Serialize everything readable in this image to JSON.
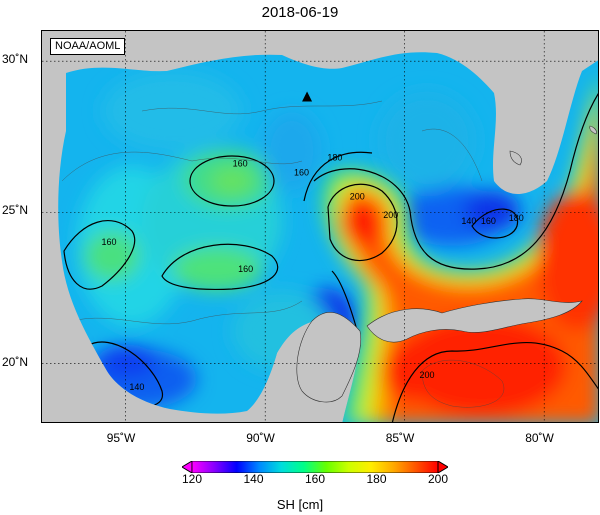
{
  "title": "2018-06-19",
  "credit": "NOAA/AOML",
  "map": {
    "lon_range": [
      -98,
      -78
    ],
    "lat_range": [
      18,
      31
    ],
    "lon_ticks": [
      {
        "value": -95,
        "label": "95˚W"
      },
      {
        "value": -90,
        "label": "90˚W"
      },
      {
        "value": -85,
        "label": "85˚W"
      },
      {
        "value": -80,
        "label": "80˚W"
      }
    ],
    "lat_ticks": [
      {
        "value": 30,
        "label": "30˚N"
      },
      {
        "value": 25,
        "label": "25˚N"
      },
      {
        "value": 20,
        "label": "20˚N"
      }
    ],
    "grid": "dotted",
    "land_color": "#c4c4c4",
    "marker": {
      "symbol": "triangle",
      "lon": -88.5,
      "lat": 28.8,
      "color": "#000000"
    },
    "contour_labels": [
      {
        "text": "160",
        "lon": -90.9,
        "lat": 26.6
      },
      {
        "text": "160",
        "lon": -95.6,
        "lat": 24.0
      },
      {
        "text": "160",
        "lon": -90.7,
        "lat": 23.1
      },
      {
        "text": "180",
        "lon": -87.5,
        "lat": 26.8
      },
      {
        "text": "160",
        "lon": -88.7,
        "lat": 26.3
      },
      {
        "text": "200",
        "lon": -86.7,
        "lat": 25.5
      },
      {
        "text": "200",
        "lon": -85.5,
        "lat": 24.9
      },
      {
        "text": "140",
        "lon": -82.7,
        "lat": 24.7
      },
      {
        "text": "160",
        "lon": -82.0,
        "lat": 24.7
      },
      {
        "text": "180",
        "lon": -81.0,
        "lat": 24.8
      },
      {
        "text": "140",
        "lon": -94.6,
        "lat": 19.2
      },
      {
        "text": "200",
        "lon": -84.2,
        "lat": 19.6
      }
    ]
  },
  "colorbar": {
    "title": "SH [cm]",
    "min": 120,
    "max": 200,
    "ticks": [
      120,
      140,
      160,
      180,
      200
    ],
    "colors": [
      "#ff00ff",
      "#8800ff",
      "#0000ff",
      "#0088ff",
      "#00dddd",
      "#00ff88",
      "#66ff00",
      "#ccff00",
      "#ffee00",
      "#ffaa00",
      "#ff5500",
      "#ff0000"
    ]
  }
}
